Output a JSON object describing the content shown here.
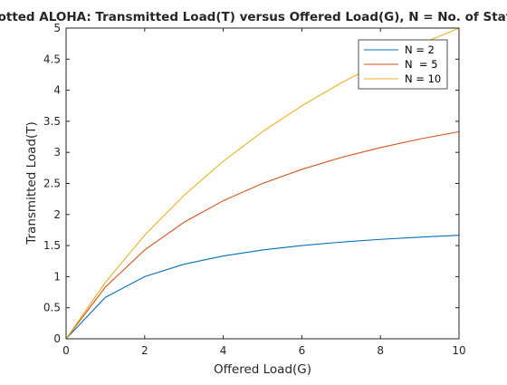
{
  "chart_data": {
    "type": "line",
    "title": "Slotted ALOHA: Transmitted Load(T) versus Offered Load(G), N = No. of Stations",
    "xlabel": "Offered Load(G)",
    "ylabel": "Transmitted Load(T)",
    "xlim": [
      0,
      10
    ],
    "ylim": [
      0,
      5
    ],
    "x_ticks": [
      "0",
      "2",
      "4",
      "6",
      "8",
      "10"
    ],
    "y_ticks": [
      "0",
      "0.5",
      "1",
      "1.5",
      "2",
      "2.5",
      "3",
      "3.5",
      "4",
      "4.5",
      "5"
    ],
    "grid": false,
    "legend_position": "top-right",
    "x": [
      0,
      1,
      2,
      3,
      4,
      5,
      6,
      7,
      8,
      9,
      10
    ],
    "series": [
      {
        "name": "N = 2",
        "color": "#0072BD",
        "values": [
          0,
          0.667,
          1.0,
          1.2,
          1.333,
          1.429,
          1.5,
          1.556,
          1.6,
          1.636,
          1.667
        ]
      },
      {
        "name": "N  = 5",
        "color": "#D95319",
        "values": [
          0,
          0.833,
          1.429,
          1.875,
          2.222,
          2.5,
          2.727,
          2.917,
          3.077,
          3.214,
          3.333
        ]
      },
      {
        "name": "N = 10",
        "color": "#EDB120",
        "values": [
          0,
          0.909,
          1.667,
          2.308,
          2.857,
          3.333,
          3.75,
          4.118,
          4.444,
          4.737,
          5.0
        ]
      }
    ]
  }
}
